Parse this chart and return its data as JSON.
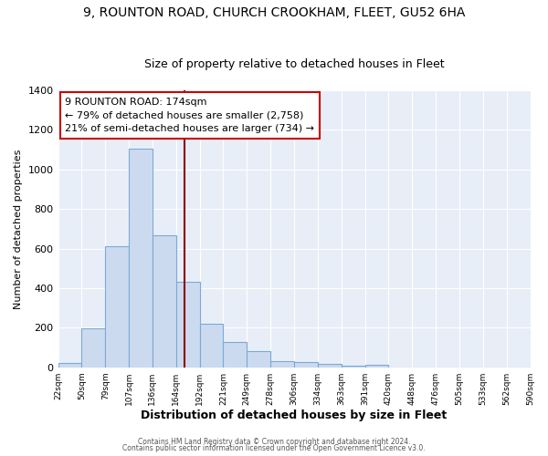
{
  "title1": "9, ROUNTON ROAD, CHURCH CROOKHAM, FLEET, GU52 6HA",
  "title2": "Size of property relative to detached houses in Fleet",
  "xlabel": "Distribution of detached houses by size in Fleet",
  "ylabel": "Number of detached properties",
  "bin_labels": [
    "22sqm",
    "50sqm",
    "79sqm",
    "107sqm",
    "136sqm",
    "164sqm",
    "192sqm",
    "221sqm",
    "249sqm",
    "278sqm",
    "306sqm",
    "334sqm",
    "363sqm",
    "391sqm",
    "420sqm",
    "448sqm",
    "476sqm",
    "505sqm",
    "533sqm",
    "562sqm",
    "590sqm"
  ],
  "bar_values": [
    20,
    195,
    612,
    1105,
    668,
    430,
    220,
    130,
    80,
    32,
    28,
    15,
    10,
    12,
    0,
    0,
    0,
    0,
    0,
    0
  ],
  "bar_color": "#ccdaf0",
  "bar_edge_color": "#7aaad4",
  "vline_color": "#8b0000",
  "annotation_text": "9 ROUNTON ROAD: 174sqm\n← 79% of detached houses are smaller (2,758)\n21% of semi-detached houses are larger (734) →",
  "annotation_box_edge_color": "#cc0000",
  "annotation_fontsize": 8,
  "ylim": [
    0,
    1400
  ],
  "yticks": [
    0,
    200,
    400,
    600,
    800,
    1000,
    1200,
    1400
  ],
  "footer1": "Contains HM Land Registry data © Crown copyright and database right 2024.",
  "footer2": "Contains public sector information licensed under the Open Government Licence v3.0.",
  "bg_color": "#ffffff",
  "plot_bg_color": "#e8eef8",
  "title1_fontsize": 10,
  "title2_fontsize": 9,
  "grid_color": "#ffffff",
  "xlabel_fontsize": 9,
  "ylabel_fontsize": 8
}
